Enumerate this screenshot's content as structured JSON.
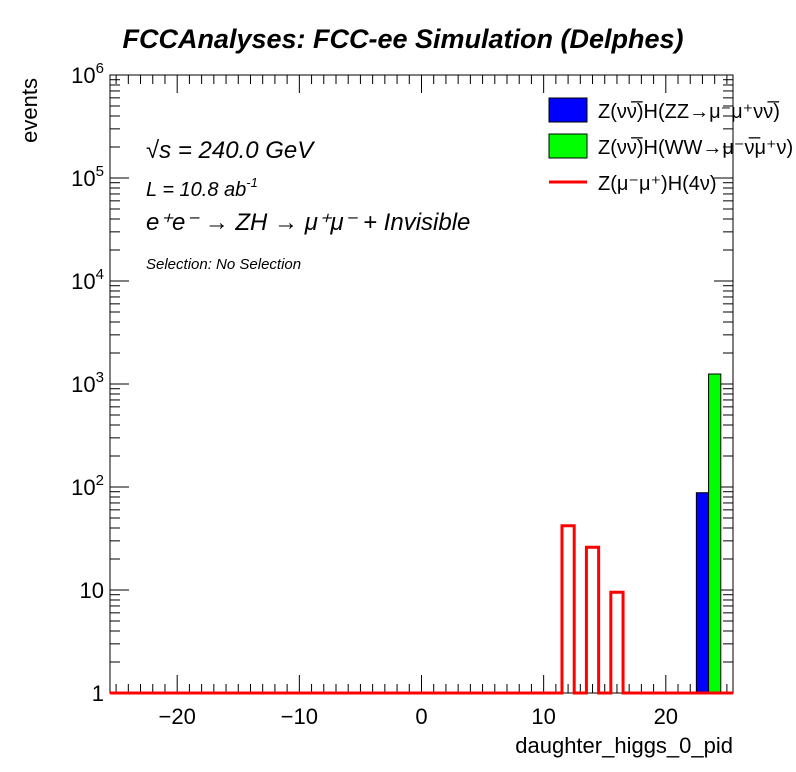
{
  "chart_data": {
    "type": "bar",
    "title": "FCCAnalyses: FCC-ee Simulation (Delphes)",
    "xlabel": "daughter_higgs_0_pid",
    "ylabel": "events",
    "xlim": [
      -25.5,
      25.5
    ],
    "ylim": [
      1,
      1000000
    ],
    "yscale": "log",
    "x_ticks": [
      "−20",
      "−10",
      "0",
      "10",
      "20"
    ],
    "x_tick_values": [
      -20,
      -10,
      0,
      10,
      20
    ],
    "y_tick_bases": [
      "10",
      "10",
      "10",
      "10",
      "10",
      "10"
    ],
    "y_tick_exps": [
      "6",
      "5",
      "4",
      "3",
      "2",
      ""
    ],
    "y_tick_plain": [
      "10",
      "1"
    ],
    "y_tick_values": [
      1000000,
      100000,
      10000,
      1000,
      100,
      10,
      1
    ],
    "annotations": {
      "sqrt_s": "√s = 240.0 GeV",
      "lumi_base": "L = 10.8 ab",
      "lumi_exp": "-1",
      "process": "e⁺e⁻ → ZH → μ⁺μ⁻ + Invisible",
      "selection": "Selection: No Selection"
    },
    "series": [
      {
        "name": "Z(νν̅)H(ZZ→μ⁻μ⁺νν̅)",
        "style": "filled",
        "color": "#0000ff",
        "bins": [
          {
            "x0": 22.5,
            "x1": 23.5,
            "value": 88
          }
        ]
      },
      {
        "name": "Z(νν̅)H(WW→μ⁻ν̅μ⁺ν)",
        "style": "filled",
        "color": "#00ff00",
        "bins": [
          {
            "x0": 23.5,
            "x1": 24.5,
            "value": 1250
          }
        ]
      },
      {
        "name": "Z(μ⁻μ⁺)H(4ν)",
        "style": "line",
        "color": "#ff0000",
        "bins": [
          {
            "x0": 11.5,
            "x1": 12.5,
            "value": 42
          },
          {
            "x0": 13.5,
            "x1": 14.5,
            "value": 26
          },
          {
            "x0": 15.5,
            "x1": 16.5,
            "value": 9.5
          }
        ]
      }
    ]
  }
}
